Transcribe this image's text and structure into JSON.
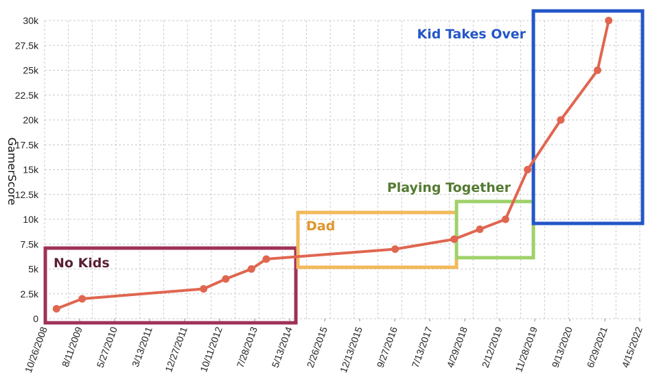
{
  "chart_data": {
    "type": "line",
    "title": "",
    "xlabel": "",
    "ylabel": "GamerScore",
    "x_tick_labels": [
      "10/26/2008",
      "8/11/2009",
      "5/27/2010",
      "3/13/2011",
      "12/27/2011",
      "10/11/2012",
      "7/28/2013",
      "5/13/2014",
      "2/26/2015",
      "12/13/2015",
      "9/27/2016",
      "7/13/2017",
      "4/29/2018",
      "2/12/2019",
      "11/28/2019",
      "9/13/2020",
      "6/29/2021",
      "4/15/2022"
    ],
    "y_tick_labels": [
      "0",
      "2.5k",
      "5k",
      "7.5k",
      "10k",
      "12.5k",
      "15k",
      "17.5k",
      "20k",
      "22.5k",
      "25k",
      "27.5k",
      "30k"
    ],
    "ylim": [
      0,
      30000
    ],
    "grid": true,
    "series": [
      {
        "color": "#e06650",
        "x": [
          "2009-02-01",
          "2009-09-01",
          "2012-06-01",
          "2012-12-01",
          "2013-07-01",
          "2013-11-01",
          "2016-10-01",
          "2018-02-01",
          "2018-09-01",
          "2019-04-01",
          "2019-10-01",
          "2020-07-01",
          "2021-05-01",
          "2021-08-01"
        ],
        "y": [
          1000,
          2000,
          3000,
          4000,
          5000,
          6000,
          7000,
          8000,
          9000,
          10000,
          15000,
          20000,
          25000,
          30000
        ]
      }
    ],
    "annotations": [
      {
        "text": "No Kids",
        "color": "#5a1f33",
        "box_color": "#9e3158"
      },
      {
        "text": "Dad",
        "color": "#e0952a",
        "box_color": "#f2b95a"
      },
      {
        "text": "Playing Together",
        "color": "#547a32",
        "box_color": "#9fd16a"
      },
      {
        "text": "Kid Takes Over",
        "color": "#2356c8",
        "box_color": "#2356c8"
      }
    ]
  }
}
